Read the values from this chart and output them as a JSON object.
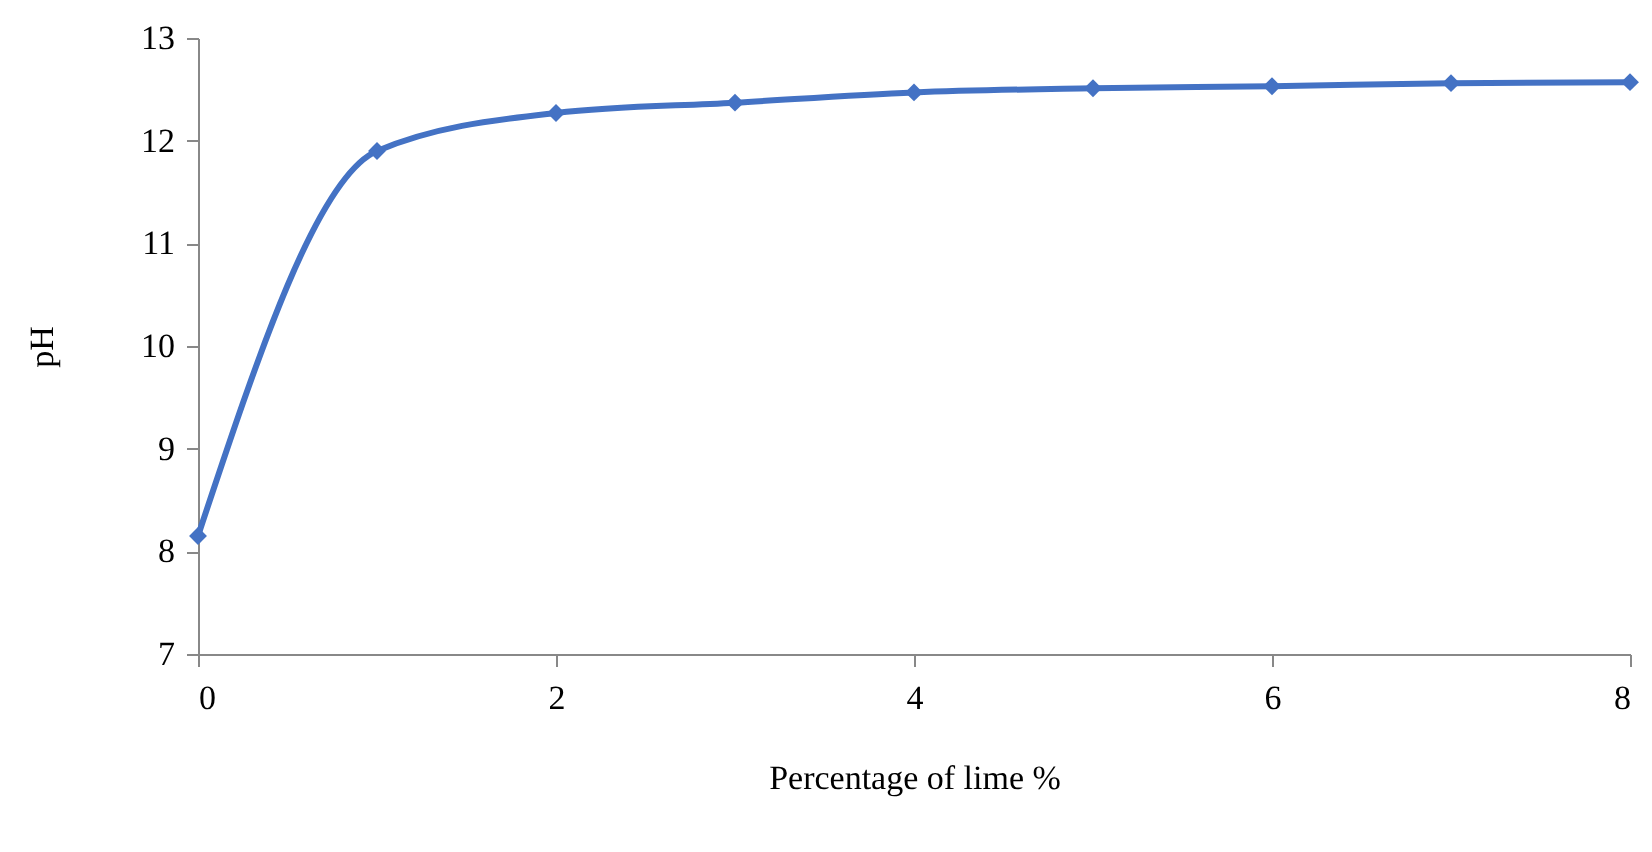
{
  "chart_data": {
    "type": "line",
    "xlabel": "Percentage of lime %",
    "ylabel": "pH",
    "x": [
      0,
      1,
      2,
      3,
      4,
      5,
      6,
      7,
      8
    ],
    "series": [
      {
        "color": "#4472c4",
        "values": [
          8.15,
          11.9,
          12.27,
          12.37,
          12.47,
          12.51,
          12.53,
          12.56,
          12.57
        ]
      }
    ],
    "xlim": [
      0,
      8
    ],
    "xticks": [
      0,
      2,
      4,
      6,
      8
    ],
    "ylim": [
      7,
      13
    ],
    "yticks": [
      7,
      8,
      9,
      10,
      11,
      12,
      13
    ],
    "grid": false,
    "marker": "diamond",
    "line_style": "solid"
  }
}
